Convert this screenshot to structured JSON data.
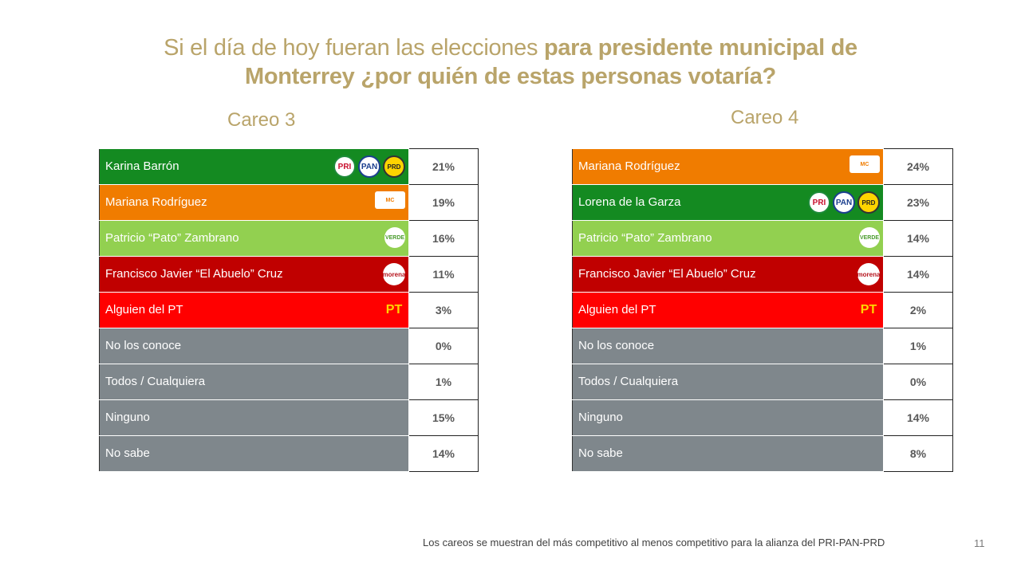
{
  "title": {
    "normal": "Si el día de hoy fueran las elecciones ",
    "bold1": "para presidente municipal de",
    "bold2": "Monterrey ¿por quién de estas personas votaría?"
  },
  "footnote": "Los careos se muestran del más competitivo al menos competitivo para la alianza del PRI-PAN-PRD",
  "page_number": "11",
  "colors": {
    "alliance_green": "#148a21",
    "mc_orange": "#f07c00",
    "verde_lightgreen": "#92d050",
    "morena_darkred": "#c00000",
    "pt_red": "#ff0000",
    "other_gray": "#7f878c",
    "title_gold": "#b9a46a"
  },
  "chart_data": [
    {
      "type": "table",
      "title": "Careo 3",
      "rows": [
        {
          "name": "Karina Barrón",
          "value": "21%",
          "color": "#148a21",
          "logos": [
            "PRI",
            "PAN",
            "PRD"
          ]
        },
        {
          "name": "Mariana Rodríguez",
          "value": "19%",
          "color": "#f07c00",
          "logos": [
            "MC"
          ]
        },
        {
          "name": "Patricio “Pato” Zambrano",
          "value": "16%",
          "color": "#92d050",
          "logos": [
            "VERDE"
          ]
        },
        {
          "name": "Francisco Javier “El Abuelo” Cruz",
          "value": "11%",
          "color": "#c00000",
          "logos": [
            "morena"
          ]
        },
        {
          "name": "Alguien del PT",
          "value": "3%",
          "color": "#ff0000",
          "logos": [
            "PT"
          ]
        },
        {
          "name": "No los conoce",
          "value": "0%",
          "color": "#7f878c",
          "logos": []
        },
        {
          "name": "Todos / Cualquiera",
          "value": "1%",
          "color": "#7f878c",
          "logos": []
        },
        {
          "name": "Ninguno",
          "value": "15%",
          "color": "#7f878c",
          "logos": []
        },
        {
          "name": "No sabe",
          "value": "14%",
          "color": "#7f878c",
          "logos": []
        }
      ]
    },
    {
      "type": "table",
      "title": "Careo 4",
      "rows": [
        {
          "name": "Mariana Rodríguez",
          "value": "24%",
          "color": "#f07c00",
          "logos": [
            "MC"
          ]
        },
        {
          "name": "Lorena de la Garza",
          "value": "23%",
          "color": "#148a21",
          "logos": [
            "PRI",
            "PAN",
            "PRD"
          ]
        },
        {
          "name": "Patricio “Pato” Zambrano",
          "value": "14%",
          "color": "#92d050",
          "logos": [
            "VERDE"
          ]
        },
        {
          "name": "Francisco Javier “El Abuelo” Cruz",
          "value": "14%",
          "color": "#c00000",
          "logos": [
            "morena"
          ]
        },
        {
          "name": "Alguien del PT",
          "value": "2%",
          "color": "#ff0000",
          "logos": [
            "PT"
          ]
        },
        {
          "name": "No los conoce",
          "value": "1%",
          "color": "#7f878c",
          "logos": []
        },
        {
          "name": "Todos / Cualquiera",
          "value": "0%",
          "color": "#7f878c",
          "logos": []
        },
        {
          "name": "Ninguno",
          "value": "14%",
          "color": "#7f878c",
          "logos": []
        },
        {
          "name": "No sabe",
          "value": "8%",
          "color": "#7f878c",
          "logos": []
        }
      ]
    }
  ]
}
